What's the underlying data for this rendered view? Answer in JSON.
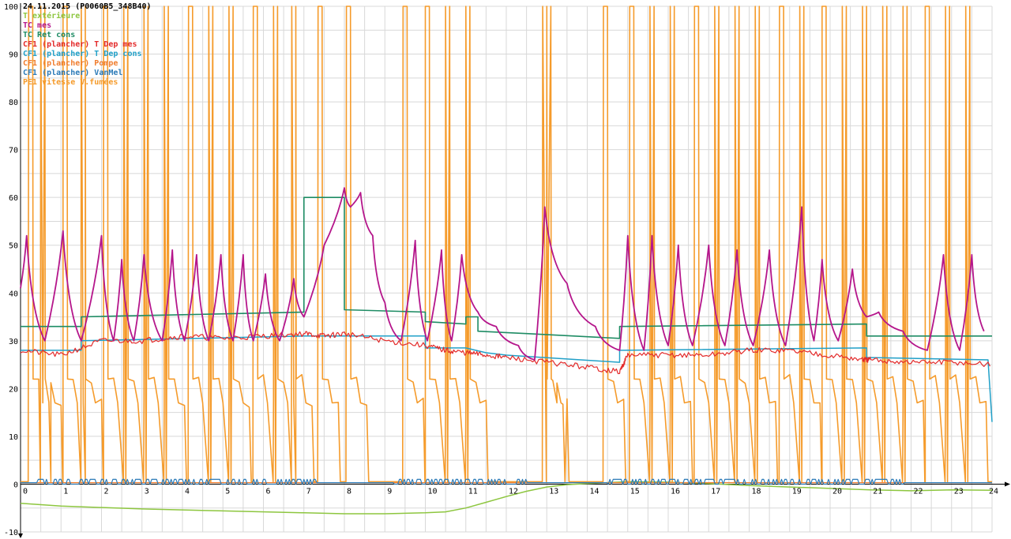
{
  "chart_data": {
    "type": "line",
    "title": "24.11.2015 (P0060B5_348B40)",
    "xlim": [
      0,
      24
    ],
    "ylim": [
      -10,
      100
    ],
    "grid": true,
    "legend_position": "top-left",
    "x_ticks": [
      0,
      1,
      2,
      3,
      4,
      5,
      6,
      7,
      8,
      9,
      10,
      11,
      12,
      13,
      14,
      15,
      16,
      17,
      18,
      19,
      20,
      21,
      22,
      23,
      24
    ],
    "y_ticks": [
      -10,
      0,
      10,
      20,
      30,
      40,
      50,
      60,
      70,
      80,
      90,
      100
    ],
    "series": [
      {
        "name": "T extérieure",
        "color": "#8dc63f",
        "x": [
          0,
          1,
          3,
          5,
          7,
          8,
          9,
          10,
          10.5,
          11,
          11.5,
          12,
          12.5,
          13,
          13.5,
          14,
          15,
          16,
          17,
          18,
          19,
          20,
          21,
          22,
          23,
          24
        ],
        "y": [
          -4,
          -4.6,
          -5.2,
          -5.6,
          -6,
          -6.2,
          -6.2,
          -6,
          -5.8,
          -5,
          -3.8,
          -2.6,
          -1.5,
          -0.6,
          -0.1,
          0.1,
          0.5,
          0.4,
          0.1,
          -0.3,
          -0.6,
          -0.9,
          -1.2,
          -1.4,
          -1.2,
          -1.3
        ]
      },
      {
        "name": "TC mes",
        "color": "#b5168b",
        "peaks_x": [
          0.15,
          1.05,
          2.0,
          2.5,
          3.05,
          3.75,
          4.35,
          4.95,
          5.5,
          6.05,
          6.75
        ],
        "peaks_y": [
          52,
          53,
          52,
          47,
          48,
          49,
          48,
          48,
          48,
          44,
          43
        ],
        "x": [
          0,
          0.15,
          0.6,
          1.05,
          1.5,
          2.0,
          2.3,
          2.5,
          2.8,
          3.05,
          3.5,
          3.75,
          4.05,
          4.35,
          4.65,
          4.95,
          5.25,
          5.5,
          5.75,
          6.05,
          6.4,
          6.75,
          7.0,
          7.5,
          8.0,
          8.15,
          8.4,
          8.7,
          9.0,
          9.4,
          9.75,
          10.05,
          10.4,
          10.65,
          10.9,
          11.3,
          11.75,
          12.3,
          12.7,
          12.95,
          13.5,
          14.2,
          14.8,
          15.0,
          15.4,
          15.6,
          16.0,
          16.25,
          16.6,
          17.0,
          17.4,
          17.7,
          18.1,
          18.5,
          18.9,
          19.3,
          19.6,
          19.8,
          20.2,
          20.55,
          20.9,
          21.2,
          21.8,
          22.4,
          22.8,
          23.2,
          23.5,
          23.8
        ],
        "y": [
          41,
          52,
          30,
          53,
          30,
          52,
          30,
          47,
          30,
          48,
          30,
          49,
          30,
          48,
          30,
          48,
          30,
          48,
          30,
          44,
          30,
          43,
          35,
          50,
          62,
          58,
          61,
          52,
          38,
          30,
          51,
          30,
          49,
          30,
          48,
          36,
          33,
          29,
          26,
          58,
          42,
          33,
          28,
          52,
          28,
          52,
          29,
          50,
          29,
          50,
          29,
          49,
          29,
          49,
          29,
          58,
          30,
          47,
          30,
          45,
          35,
          36,
          32,
          28,
          48,
          28,
          48,
          32
        ]
      },
      {
        "name": "TC Ret cons",
        "color": "#1e8c64",
        "x": [
          0,
          1.5,
          1.5,
          7.0,
          7.0,
          8.0,
          8.0,
          10.0,
          10.0,
          11.0,
          11.0,
          11.3,
          11.3,
          12.5,
          12.5,
          14.8,
          14.8,
          20.9,
          20.9,
          24
        ],
        "y": [
          33,
          33,
          35,
          36,
          60,
          60,
          36.5,
          36,
          34,
          33.5,
          35,
          35,
          32,
          31.5,
          31.5,
          30.5,
          33,
          33.5,
          31,
          31
        ]
      },
      {
        "name": "CF1 (plancher) T Dep mes",
        "color": "#e32b2b",
        "x": [
          0,
          1,
          2,
          3,
          4,
          5,
          6,
          7,
          7.5,
          8,
          9,
          10,
          10.5,
          11,
          11.5,
          12,
          13,
          14,
          14.8,
          15,
          16,
          17,
          18,
          19,
          20,
          20.8,
          21,
          22,
          23,
          24
        ],
        "y": [
          28,
          27,
          30,
          30,
          31,
          30.5,
          31,
          31.5,
          31,
          31.5,
          30,
          29,
          28,
          27.5,
          27,
          26.5,
          25.5,
          24.5,
          23.5,
          27,
          27,
          27,
          28,
          28,
          27,
          26,
          26,
          25.5,
          25.5,
          25
        ]
      },
      {
        "name": "CF1 (plancher) T Dep cons",
        "color": "#21a0c8",
        "x": [
          0,
          1.5,
          1.5,
          7,
          8,
          10,
          10,
          11,
          11.5,
          12,
          14.8,
          14.8,
          20.9,
          20.9,
          23.9,
          24
        ],
        "y": [
          28,
          28,
          30,
          31,
          31,
          31,
          28.5,
          28.5,
          27.5,
          27,
          25.5,
          28,
          28.5,
          26.5,
          26,
          13
        ]
      },
      {
        "name": "CF1 (plancher) Pompe",
        "color": "#f07d2e",
        "x": [
          0,
          24
        ],
        "y": [
          0,
          0
        ]
      },
      {
        "name": "CF1 (plancher) VanMel",
        "color": "#2c7bb8",
        "x": [
          0,
          24
        ],
        "y": [
          1,
          1
        ]
      },
      {
        "name": "PE1 vitesse V.fumées",
        "color": "#f59b2b",
        "x": [
          0,
          24
        ],
        "y": [
          0,
          0
        ]
      }
    ]
  }
}
